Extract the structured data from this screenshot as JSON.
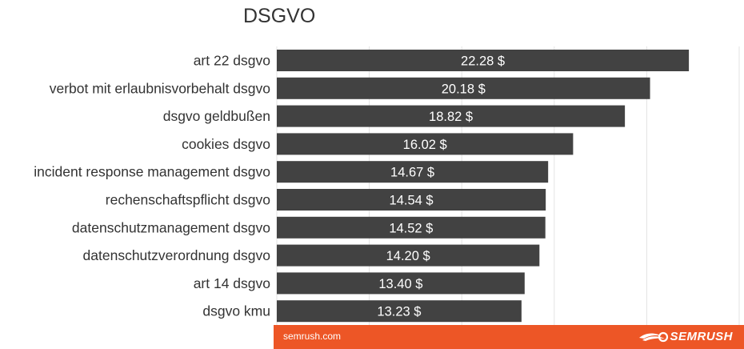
{
  "chart_data": {
    "type": "bar",
    "orientation": "horizontal",
    "title": "DSGVO",
    "categories": [
      "art 22 dsgvo",
      "verbot mit erlaubnisvorbehalt dsgvo",
      "dsgvo geldbußen",
      "cookies dsgvo",
      "incident response management dsgvo",
      "rechenschaftspflicht dsgvo",
      "datenschutzmanagement dsgvo",
      "datenschutzverordnung dsgvo",
      "art 14 dsgvo",
      "dsgvo kmu"
    ],
    "values": [
      22.28,
      20.18,
      18.82,
      16.02,
      14.67,
      14.54,
      14.52,
      14.2,
      13.4,
      13.23
    ],
    "value_labels": [
      "22.28 $",
      "20.18 $",
      "18.82 $",
      "16.02 $",
      "14.67 $",
      "14.54 $",
      "14.52 $",
      "14.20 $",
      "13.40 $",
      "13.23 $"
    ],
    "xlim": [
      0,
      25
    ],
    "grid": true,
    "bar_color": "#424242",
    "label_color": "#ffffff"
  },
  "footer": {
    "source": "semrush.com",
    "brand": "SEMRUSH",
    "brand_icon": "semrush-fire-icon",
    "color": "#ed5626"
  }
}
